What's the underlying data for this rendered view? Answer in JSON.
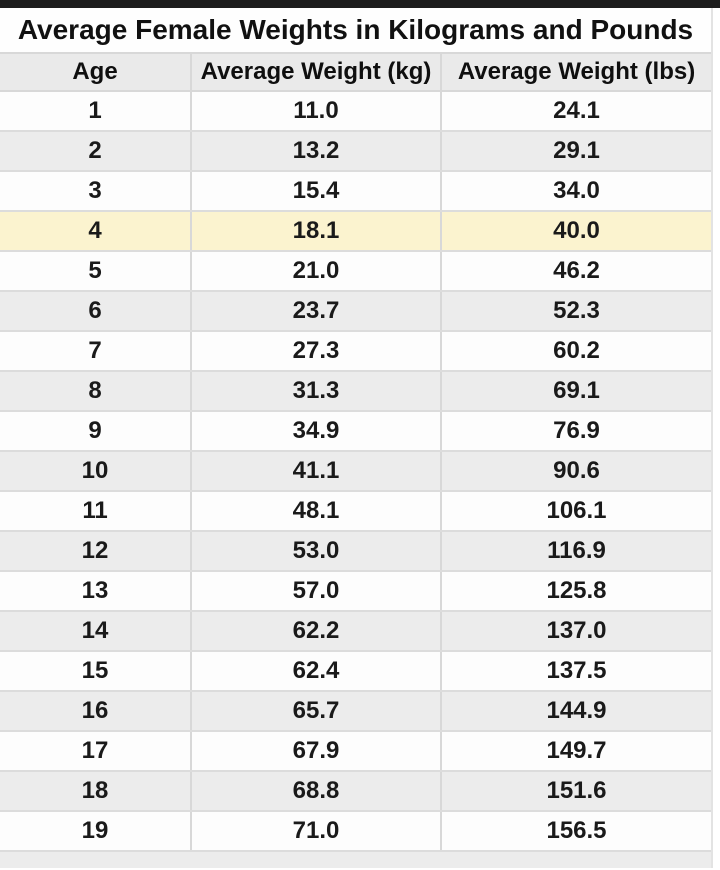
{
  "chart_data": {
    "type": "table",
    "title": "Average Female Weights in Kilograms and Pounds",
    "columns": [
      "Age",
      "Average Weight (kg)",
      "Average Weight (lbs)"
    ],
    "rows": [
      [
        "1",
        "11.0",
        "24.1"
      ],
      [
        "2",
        "13.2",
        "29.1"
      ],
      [
        "3",
        "15.4",
        "34.0"
      ],
      [
        "4",
        "18.1",
        "40.0"
      ],
      [
        "5",
        "21.0",
        "46.2"
      ],
      [
        "6",
        "23.7",
        "52.3"
      ],
      [
        "7",
        "27.3",
        "60.2"
      ],
      [
        "8",
        "31.3",
        "69.1"
      ],
      [
        "9",
        "34.9",
        "76.9"
      ],
      [
        "10",
        "41.1",
        "90.6"
      ],
      [
        "11",
        "48.1",
        "106.1"
      ],
      [
        "12",
        "53.0",
        "116.9"
      ],
      [
        "13",
        "57.0",
        "125.8"
      ],
      [
        "14",
        "62.2",
        "137.0"
      ],
      [
        "15",
        "62.4",
        "137.5"
      ],
      [
        "16",
        "65.7",
        "144.9"
      ],
      [
        "17",
        "67.9",
        "149.7"
      ],
      [
        "18",
        "68.8",
        "151.6"
      ],
      [
        "19",
        "71.0",
        "156.5"
      ]
    ],
    "highlighted_row_age": "4",
    "layout": {
      "grid": "on",
      "alternating_rows": true
    }
  },
  "colors": {
    "top_strip": "#1d1d1d",
    "header_bg": "#eaeaea",
    "row_alt_bg": "#ececec",
    "row_white_bg": "#fdfdfd",
    "highlight_row_bg": "#fbf3cf",
    "border": "#d8d8d8",
    "text": "#1a1a1a"
  }
}
